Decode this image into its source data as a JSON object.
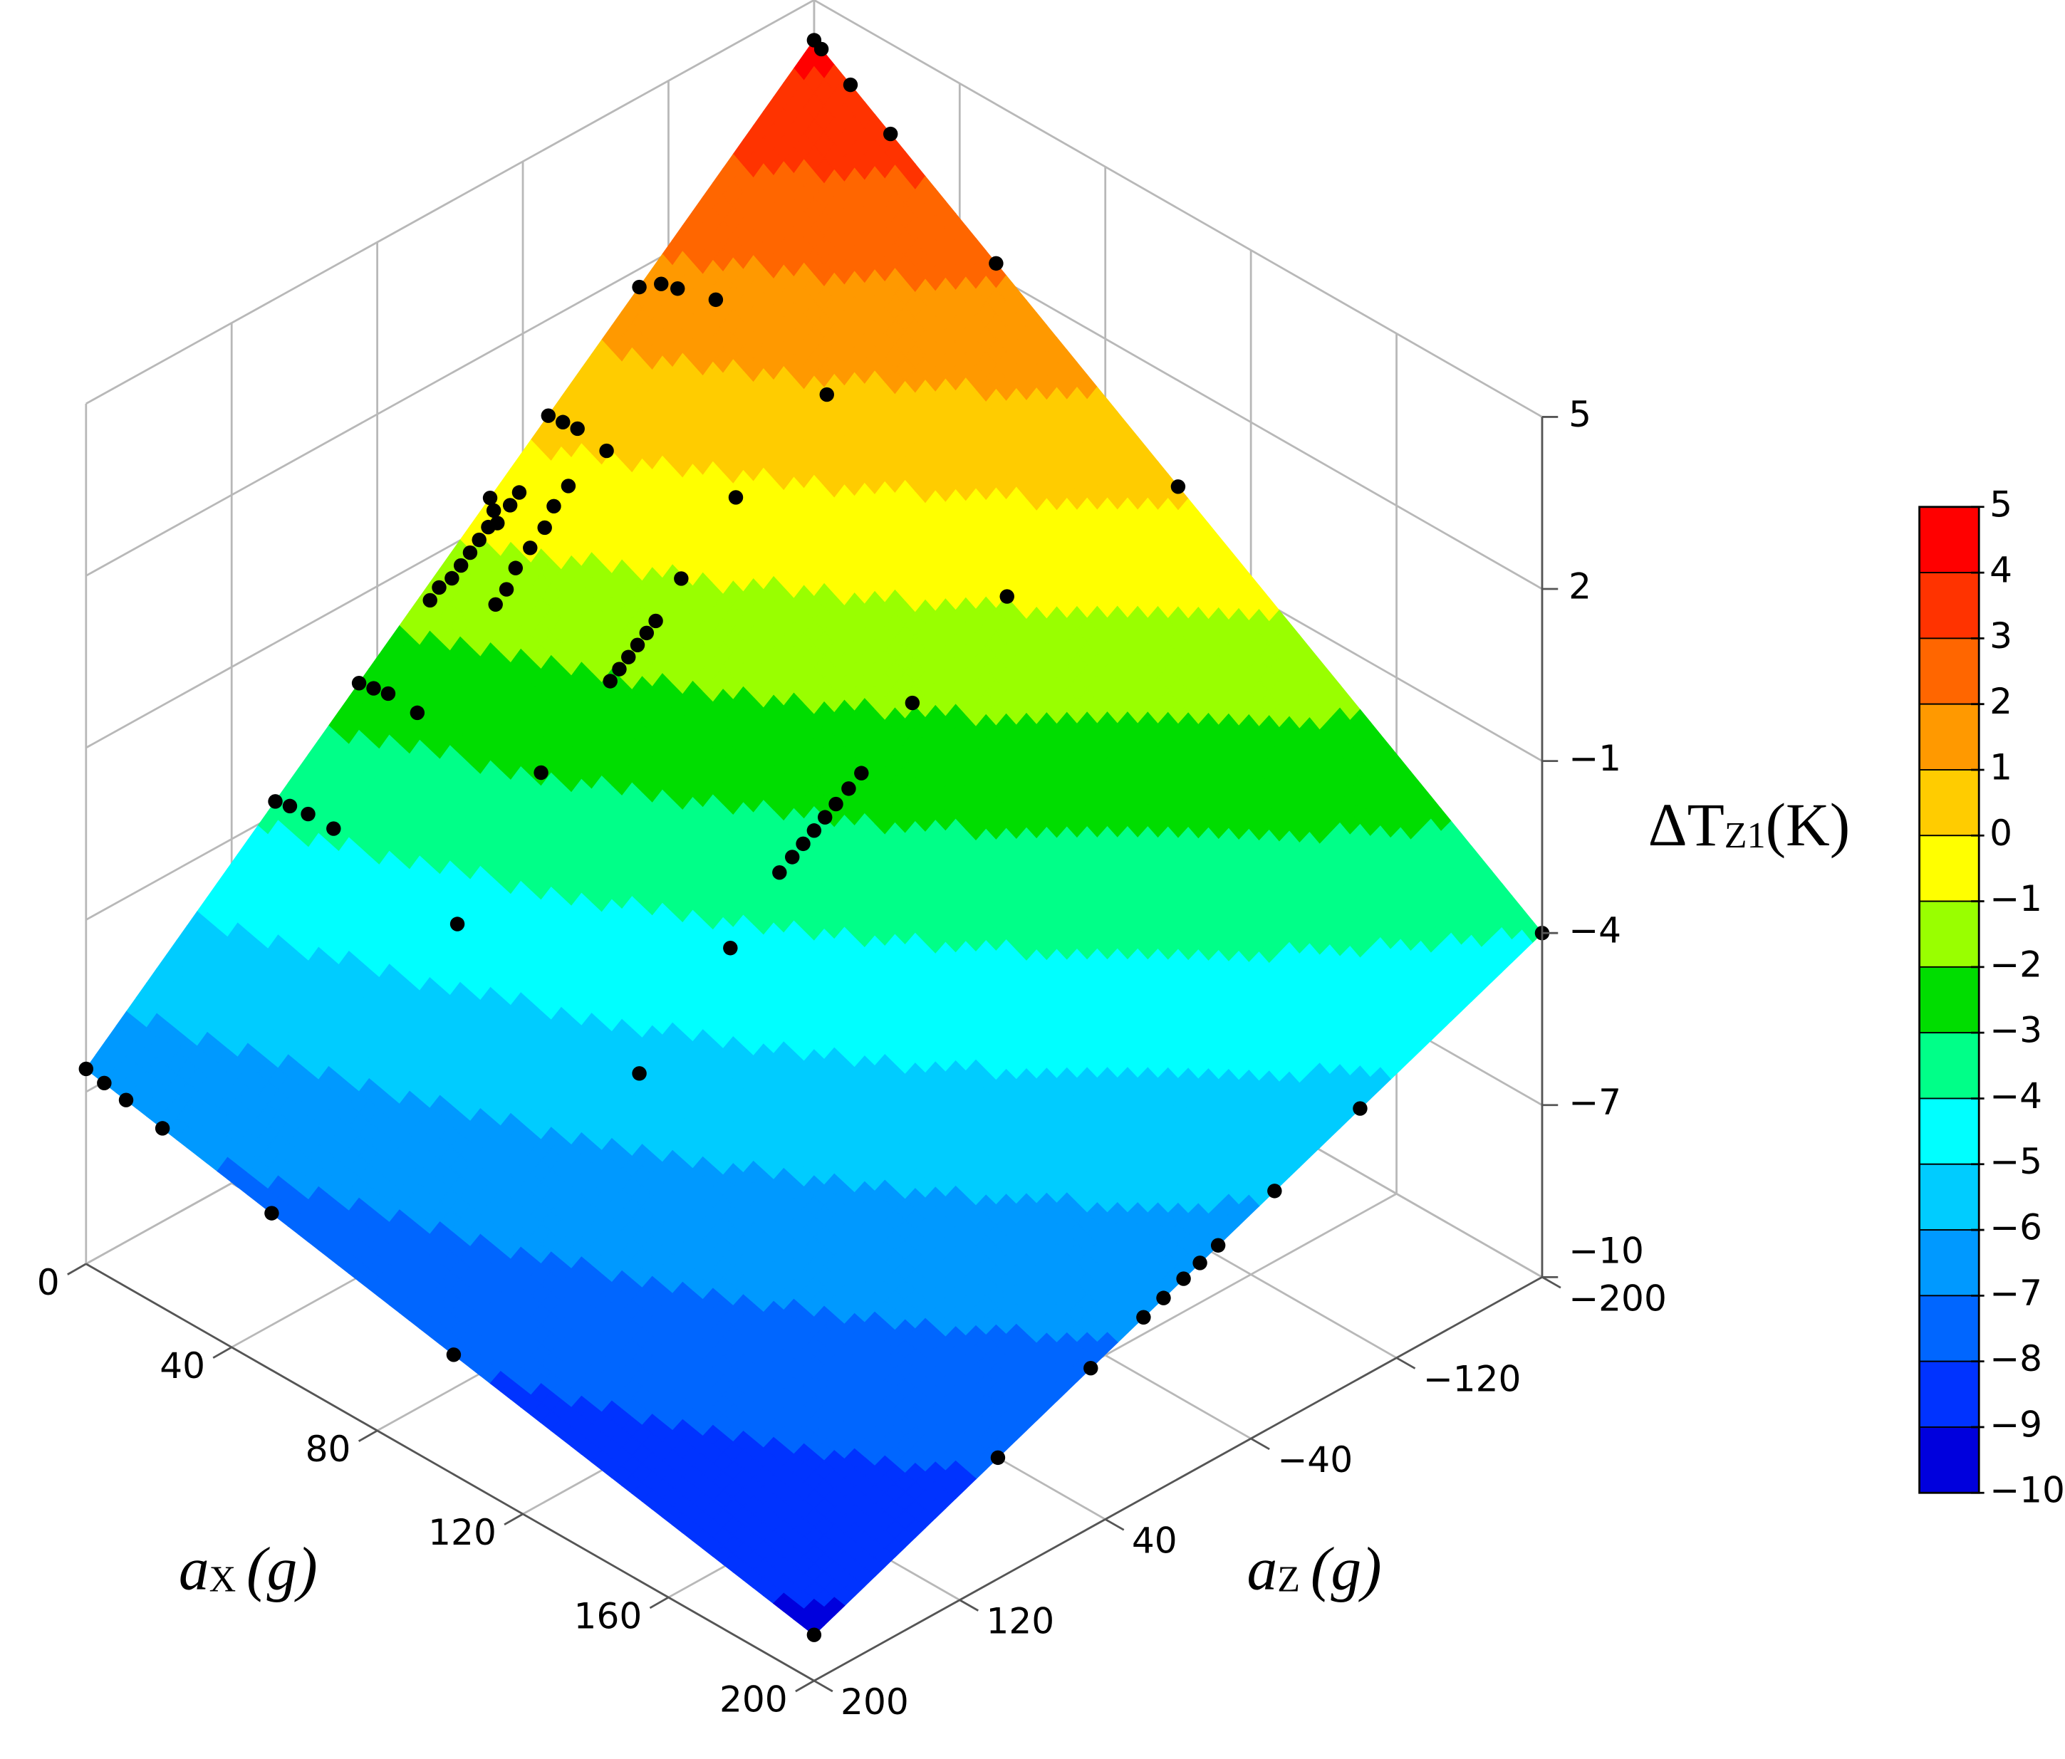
{
  "chart_data": {
    "type": "surface3d",
    "xlabel": {
      "base": "a",
      "sub": "X",
      "unit": "(g)"
    },
    "ylabel": {
      "base": "a",
      "sub": "Z",
      "unit": "(g)"
    },
    "xlim": [
      0,
      200
    ],
    "ylim": [
      -200,
      200
    ],
    "zlim": [
      -10,
      5
    ],
    "xticks": [
      0,
      40,
      80,
      120,
      160,
      200
    ],
    "yticks": [
      {
        "value": -200,
        "label": "−200"
      },
      {
        "value": -120,
        "label": "−120"
      },
      {
        "value": -40,
        "label": "−40"
      },
      40,
      120,
      200
    ],
    "zticks": [
      5,
      2,
      {
        "value": -1,
        "label": "−1"
      },
      {
        "value": -4,
        "label": "−4"
      },
      {
        "value": -7,
        "label": "−7"
      },
      {
        "value": -10,
        "label": "−10"
      }
    ],
    "grid": true,
    "surface": {
      "x": [
        0,
        200
      ],
      "y": [
        -200,
        200
      ],
      "z": [
        [
          4.3,
          -6.6
        ],
        [
          -4,
          -9.2
        ]
      ]
    },
    "points": {
      "color": "#000000",
      "x": [
        0,
        5,
        11,
        21,
        51,
        101,
        200,
        200,
        200,
        200,
        200,
        200,
        200,
        200,
        200,
        200,
        200,
        2,
        10,
        21,
        50,
        100,
        0,
        0,
        3,
        6,
        13,
        0,
        3,
        6,
        13,
        0,
        2,
        4,
        0,
        3,
        6,
        13,
        0,
        3,
        7,
        13,
        3,
        3,
        3,
        3,
        3,
        4,
        4,
        2,
        2,
        11,
        11,
        12,
        12,
        12,
        13,
        13,
        40,
        40,
        40,
        40,
        40,
        40,
        40,
        39,
        38,
        40,
        93,
        91,
        89,
        89,
        89,
        89,
        89,
        89,
        89,
        89,
        88,
        89,
        45
      ],
      "y": [
        200,
        200,
        200,
        200,
        200,
        200,
        200,
        99,
        48,
        19,
        8,
        -3,
        -12,
        -22,
        -53,
        -100,
        -200,
        -200,
        -200,
        -200,
        -200,
        -200,
        -200,
        -104,
        -110,
        -113,
        -120,
        -54,
        -56,
        -58,
        -60,
        -22,
        -20,
        -18,
        50,
        48,
        46,
        44,
        96,
        94,
        92,
        90,
        -15,
        -10,
        -5,
        0,
        5,
        -25,
        -30,
        10,
        15,
        -43,
        -35,
        -28,
        -20,
        -12,
        -5,
        1,
        30,
        -8,
        -13,
        -18,
        -23,
        -28,
        -33,
        -49,
        -81,
        -127,
        82,
        28,
        -3,
        -10,
        -16,
        -22,
        -28,
        -34,
        -41,
        -48,
        -78,
        -128,
        86
      ]
    },
    "colorbar": {
      "title": {
        "base": "ΔT",
        "sub": "Z1",
        "unit": "(K)"
      },
      "levels": [
        5,
        4,
        3,
        2,
        1,
        0,
        {
          "value": -1,
          "label": "−1"
        },
        {
          "value": -2,
          "label": "−2"
        },
        {
          "value": -3,
          "label": "−3"
        },
        {
          "value": -4,
          "label": "−4"
        },
        {
          "value": -5,
          "label": "−5"
        },
        {
          "value": -6,
          "label": "−6"
        },
        {
          "value": -7,
          "label": "−7"
        },
        {
          "value": -8,
          "label": "−8"
        },
        {
          "value": -9,
          "label": "−9"
        },
        {
          "value": -10,
          "label": "−10"
        }
      ],
      "colors": [
        "#ff0000",
        "#ff3300",
        "#ff6600",
        "#ff9900",
        "#ffcc00",
        "#ffff00",
        "#99ff00",
        "#00dd00",
        "#00ff88",
        "#00ffff",
        "#00ccff",
        "#0099ff",
        "#0066ff",
        "#0033ff",
        "#0000dd"
      ]
    }
  }
}
